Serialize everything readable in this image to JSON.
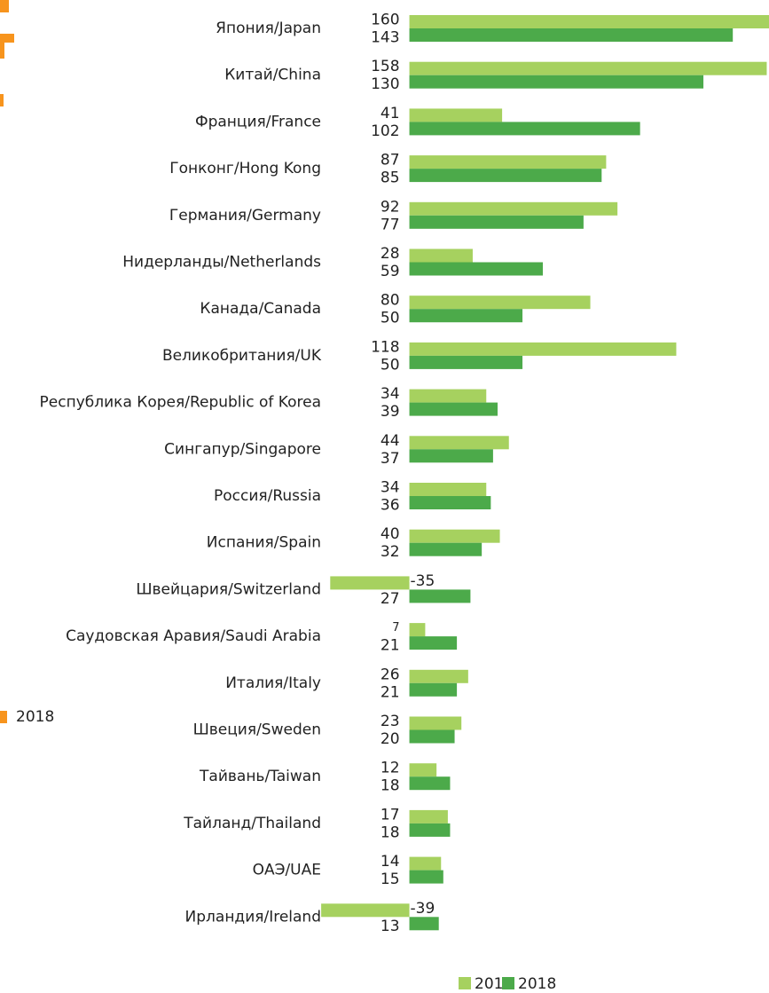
{
  "chart_data": [
    {
      "type": "hbar",
      "categories": [
        "Япония/Japan",
        "Китай/China",
        "Франция/France",
        "Гонконг/Hong Kong",
        "Германия/Germany",
        "Нидерланды/Netherlands",
        "Канада/Canada",
        "Великобритания/UK",
        "Республика Корея/Republic of Korea",
        "Сингапур/Singapore",
        "Россия/Russia",
        "Испания/Spain",
        "Швейцария/Switzerland",
        "Саудовская Аравия/Saudi Arabia",
        "Италия/Italy",
        "Швеция/Sweden",
        "Тайвань/Taiwan",
        "Тайланд/Thailand",
        "ОАЭ/UAE",
        "Ирландия/Ireland"
      ],
      "series": [
        {
          "name": "2017",
          "color": "#a6d15f",
          "values": [
            160,
            158,
            41,
            87,
            92,
            28,
            80,
            118,
            34,
            44,
            34,
            40,
            -35,
            7,
            26,
            23,
            12,
            17,
            14,
            -39
          ]
        },
        {
          "name": "2018",
          "color": "#4caa4a",
          "values": [
            143,
            130,
            102,
            85,
            77,
            59,
            50,
            50,
            39,
            37,
            36,
            32,
            27,
            21,
            21,
            20,
            18,
            18,
            15,
            13
          ]
        }
      ],
      "xlim": [
        -181,
        159
      ],
      "legend": "bottom"
    },
    {
      "type": "legend-fragment",
      "series": [
        {
          "name": "2018",
          "color": "#f7941d"
        }
      ]
    }
  ]
}
